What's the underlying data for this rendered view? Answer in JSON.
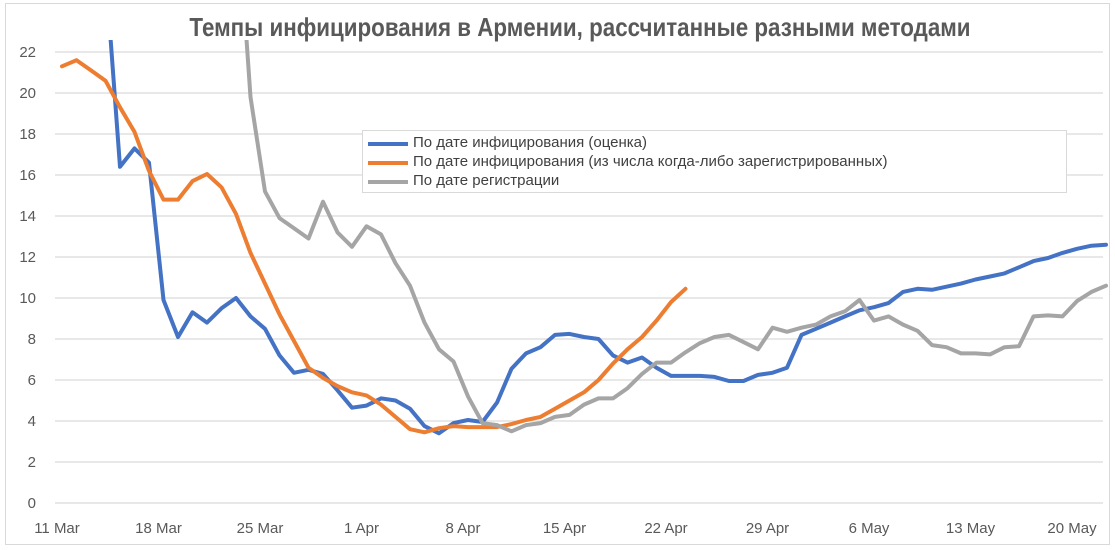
{
  "chart_data": {
    "type": "line",
    "title": "Темпы инфицирования в Армении, рассчитанные разными методами",
    "xlabel": "",
    "ylabel": "",
    "ylim": [
      0,
      22
    ],
    "yticks": [
      "0",
      "2",
      "4",
      "6",
      "8",
      "10",
      "12",
      "14",
      "16",
      "18",
      "20",
      "22"
    ],
    "start_date": "11 Mar",
    "xticks": [
      {
        "label": "11 Mar",
        "day": 0
      },
      {
        "label": "18 Mar",
        "day": 7
      },
      {
        "label": "25 Mar",
        "day": 14
      },
      {
        "label": "1 Apr",
        "day": 21
      },
      {
        "label": "8 Apr",
        "day": 28
      },
      {
        "label": "15 Apr",
        "day": 35
      },
      {
        "label": "22 Apr",
        "day": 42
      },
      {
        "label": "29 Apr",
        "day": 49
      },
      {
        "label": "6 May",
        "day": 56
      },
      {
        "label": "13 May",
        "day": 63
      },
      {
        "label": "20 May",
        "day": 70
      }
    ],
    "grid": true,
    "legend_position": "center-right",
    "series": [
      {
        "name": "По дате инфицирования (оценка)",
        "color": "#4472c4",
        "start_day": 3,
        "values": [
          26,
          16.4,
          17.3,
          16.6,
          9.9,
          8.1,
          9.3,
          8.8,
          9.5,
          10.0,
          9.1,
          8.5,
          7.2,
          6.35,
          6.5,
          6.3,
          5.5,
          4.65,
          4.75,
          5.1,
          5.0,
          4.6,
          3.75,
          3.4,
          3.9,
          4.05,
          3.95,
          4.9,
          6.55,
          7.3,
          7.6,
          8.2,
          8.25,
          8.1,
          8.0,
          7.2,
          6.85,
          7.1,
          6.6,
          6.2,
          6.2,
          6.2,
          6.15,
          5.95,
          5.95,
          6.25,
          6.35,
          6.6,
          8.2,
          8.5,
          8.8,
          9.1,
          9.4,
          9.55,
          9.75,
          10.3,
          10.45,
          10.4,
          10.55,
          10.7,
          10.9,
          11.05,
          11.2,
          11.5,
          11.8,
          11.95,
          12.2,
          12.4,
          12.55,
          12.6
        ]
      },
      {
        "name": "По дате инфицирования (из числа когда-либо зарегистрированных)",
        "color": "#ed7d31",
        "start_day": 0,
        "values": [
          21.3,
          21.6,
          21.1,
          20.6,
          19.3,
          18.1,
          16.2,
          14.8,
          14.8,
          15.7,
          16.05,
          15.4,
          14.1,
          12.2,
          10.7,
          9.2,
          7.9,
          6.6,
          6.1,
          5.7,
          5.4,
          5.25,
          4.8,
          4.2,
          3.6,
          3.45,
          3.65,
          3.75,
          3.7,
          3.7,
          3.7,
          3.85,
          4.05,
          4.2,
          4.6,
          5.0,
          5.4,
          6.0,
          6.8,
          7.5,
          8.1,
          8.9,
          9.8,
          10.45
        ]
      },
      {
        "name": "По дате регистрации",
        "color": "#a5a5a5",
        "start_day": 12,
        "values": [
          30,
          19.8,
          15.2,
          13.9,
          13.4,
          12.9,
          14.7,
          13.2,
          12.5,
          13.5,
          13.1,
          11.7,
          10.6,
          8.8,
          7.5,
          6.9,
          5.2,
          3.9,
          3.8,
          3.5,
          3.8,
          3.9,
          4.2,
          4.3,
          4.8,
          5.1,
          5.1,
          5.6,
          6.3,
          6.85,
          6.85,
          7.35,
          7.8,
          8.1,
          8.2,
          7.85,
          7.5,
          8.55,
          8.35,
          8.55,
          8.7,
          9.1,
          9.35,
          9.9,
          8.9,
          9.1,
          8.7,
          8.4,
          7.7,
          7.6,
          7.3,
          7.3,
          7.25,
          7.6,
          7.65,
          9.1,
          9.15,
          9.1,
          9.85,
          10.3,
          10.6
        ]
      }
    ]
  }
}
